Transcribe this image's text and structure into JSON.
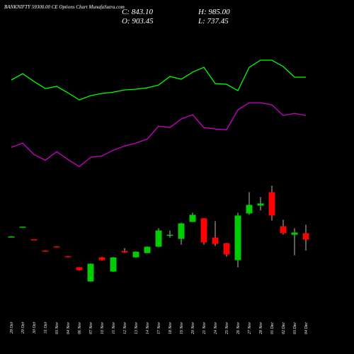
{
  "chart_data": {
    "type": "candlestick",
    "title": "BANKNIFTY 59300.00 CE Options Chart MunafaSutra.com",
    "summary": {
      "close": "C: 843.10",
      "high": "H: 985.00",
      "open": "O: 903.45",
      "low": "L: 737.45"
    },
    "categories": [
      "28 Oct",
      "29 Oct",
      "30 Oct",
      "31 Oct",
      "03 Nov",
      "04 Nov",
      "06 Nov",
      "07 Nov",
      "10 Nov",
      "11 Nov",
      "12 Nov",
      "13 Nov",
      "14 Nov",
      "17 Nov",
      "18 Nov",
      "19 Nov",
      "20 Nov",
      "21 Nov",
      "24 Nov",
      "25 Nov",
      "26 Nov",
      "27 Nov",
      "28 Nov",
      "01 Dec",
      "02 Dec",
      "03 Dec",
      "04 Dec"
    ],
    "open": [
      869,
      962,
      845,
      737,
      778,
      683,
      577,
      441,
      672,
      536,
      733,
      672,
      713,
      774,
      883,
      849,
      1012,
      1046,
      862,
      808,
      645,
      1093,
      1168,
      1297,
      971,
      889,
      903.45
    ],
    "high": [
      875,
      968,
      846,
      740,
      780,
      686,
      580,
      615,
      676,
      675,
      760,
      730,
      778,
      951,
      930,
      1005,
      1100,
      1050,
      1019,
      812,
      1100,
      1297,
      1250,
      1359,
      1032,
      951,
      985
    ],
    "low": [
      866,
      960,
      838,
      727,
      768,
      672,
      545,
      438,
      640,
      533,
      715,
      668,
      710,
      770,
      862,
      794,
      1008,
      794,
      780,
      679,
      577,
      1080,
      1121,
      1025,
      889,
      692,
      737.45
    ],
    "close": [
      872,
      966,
      840,
      729,
      770,
      675,
      549,
      611,
      645,
      672,
      719,
      726,
      774,
      930,
      889,
      998,
      1080,
      815,
      801,
      699,
      1073,
      1175,
      1189,
      1073,
      903,
      910,
      843.1
    ],
    "up_color": "#00cc00",
    "down_color": "#ff0000",
    "series": [
      {
        "color": "#00ff00",
        "values": [
          2372,
          2433,
          2358,
          2290,
          2311,
          2249,
          2181,
          2222,
          2243,
          2256,
          2277,
          2284,
          2297,
          2324,
          2406,
          2379,
          2447,
          2494,
          2338,
          2331,
          2270,
          2494,
          2562,
          2562,
          2501,
          2399,
          2399
        ]
      },
      {
        "color": "#cc00cc",
        "values": [
          1726,
          1767,
          1658,
          1603,
          1685,
          1610,
          1542,
          1631,
          1644,
          1699,
          1739,
          1767,
          1807,
          1930,
          1916,
          1998,
          2039,
          1916,
          1903,
          1896,
          2086,
          2154,
          2154,
          2134,
          2032,
          2052,
          2032
        ]
      }
    ]
  }
}
